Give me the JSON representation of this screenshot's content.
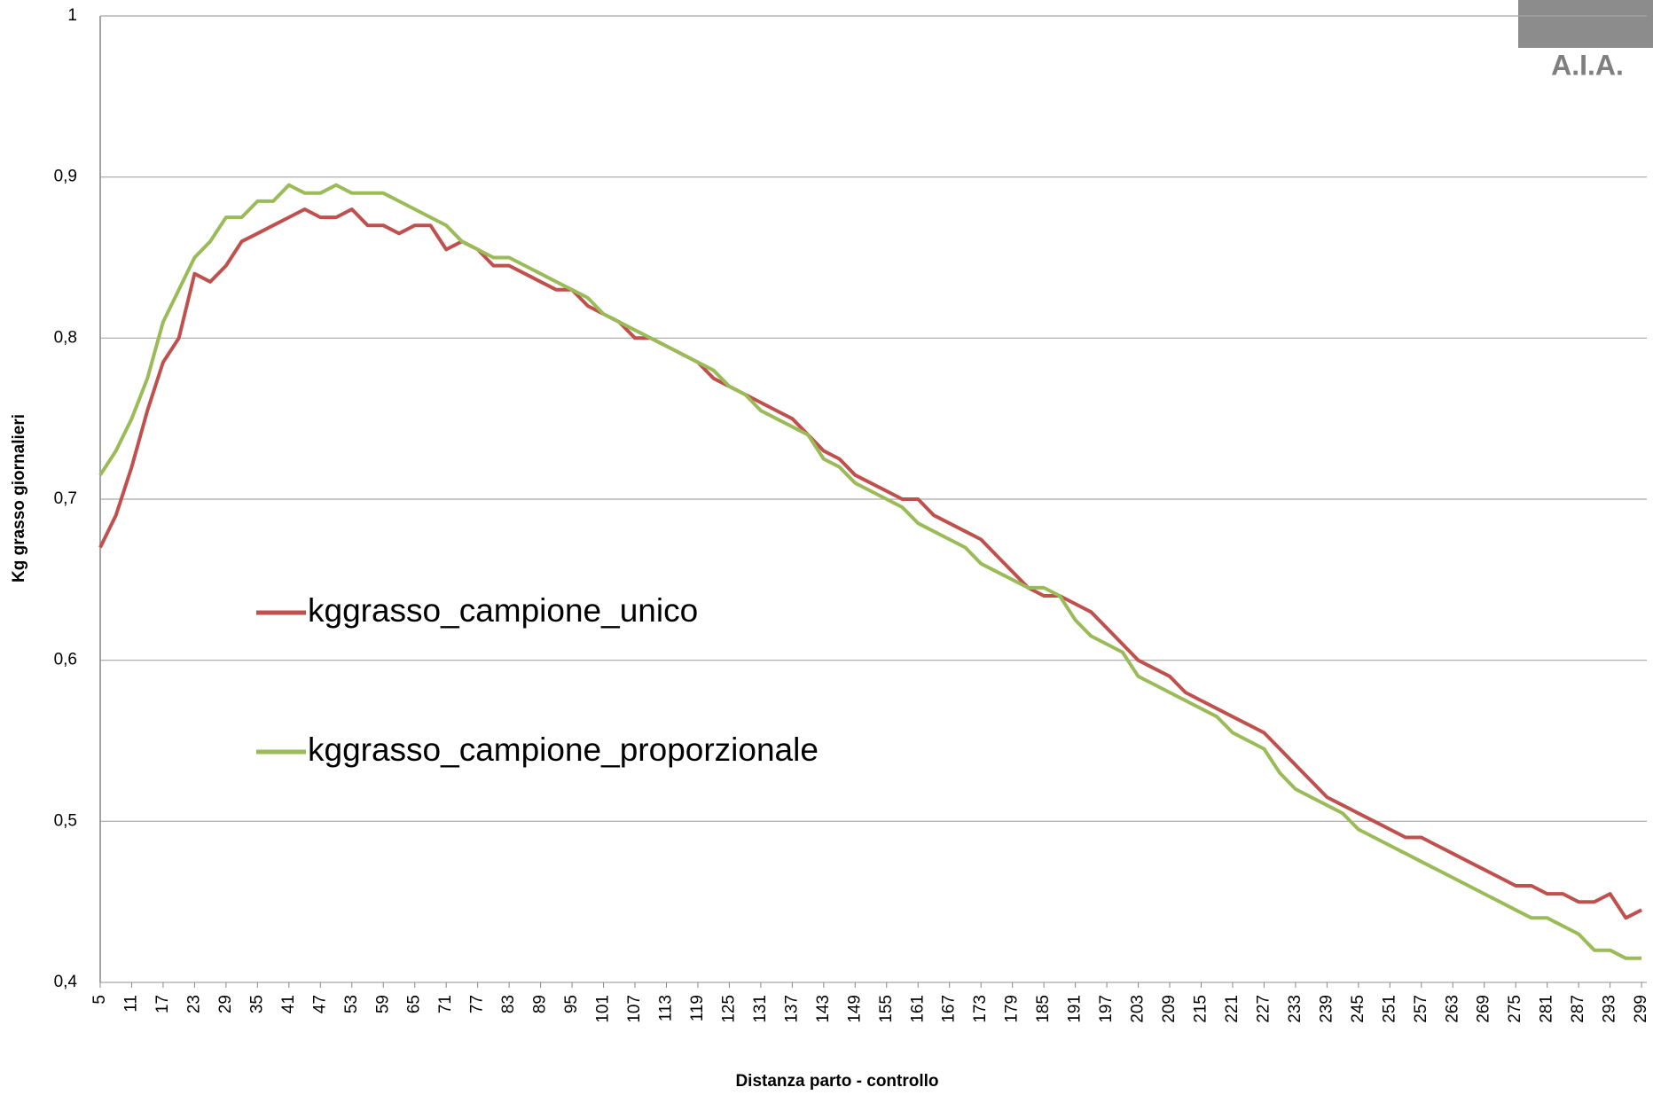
{
  "chart_data": {
    "type": "line",
    "xlabel": "Distanza parto - controllo",
    "ylabel": "Kg grasso giornalieri",
    "logo": "A.I.A.",
    "x": [
      5,
      8,
      11,
      14,
      17,
      20,
      23,
      26,
      29,
      32,
      35,
      38,
      41,
      44,
      47,
      50,
      53,
      56,
      59,
      62,
      65,
      68,
      71,
      74,
      77,
      80,
      83,
      86,
      89,
      92,
      95,
      98,
      101,
      104,
      107,
      110,
      113,
      116,
      119,
      122,
      125,
      128,
      131,
      134,
      137,
      140,
      143,
      146,
      149,
      152,
      155,
      158,
      161,
      164,
      167,
      170,
      173,
      176,
      179,
      182,
      185,
      188,
      191,
      194,
      197,
      200,
      203,
      206,
      209,
      212,
      215,
      218,
      221,
      224,
      227,
      230,
      233,
      236,
      239,
      242,
      245,
      248,
      251,
      254,
      257,
      260,
      263,
      266,
      269,
      272,
      275,
      278,
      281,
      284,
      287,
      290,
      293,
      296,
      299
    ],
    "series": [
      {
        "name": "kggrasso_campione_unico",
        "color": "#c0504d",
        "values": [
          0.67,
          0.69,
          0.72,
          0.755,
          0.785,
          0.8,
          0.84,
          0.835,
          0.845,
          0.86,
          0.865,
          0.87,
          0.875,
          0.88,
          0.875,
          0.875,
          0.88,
          0.87,
          0.87,
          0.865,
          0.87,
          0.87,
          0.855,
          0.86,
          0.855,
          0.845,
          0.845,
          0.84,
          0.835,
          0.83,
          0.83,
          0.82,
          0.815,
          0.81,
          0.8,
          0.8,
          0.795,
          0.79,
          0.785,
          0.775,
          0.77,
          0.765,
          0.76,
          0.755,
          0.75,
          0.74,
          0.73,
          0.725,
          0.715,
          0.71,
          0.705,
          0.7,
          0.7,
          0.69,
          0.685,
          0.68,
          0.675,
          0.665,
          0.655,
          0.645,
          0.64,
          0.64,
          0.635,
          0.63,
          0.62,
          0.61,
          0.6,
          0.595,
          0.59,
          0.58,
          0.575,
          0.57,
          0.565,
          0.56,
          0.555,
          0.545,
          0.535,
          0.525,
          0.515,
          0.51,
          0.505,
          0.5,
          0.495,
          0.49,
          0.49,
          0.485,
          0.48,
          0.475,
          0.47,
          0.465,
          0.46,
          0.46,
          0.455,
          0.455,
          0.45,
          0.45,
          0.455,
          0.44,
          0.445
        ]
      },
      {
        "name": "kggrasso_campione_proporzionale",
        "color": "#9bbb59",
        "values": [
          0.715,
          0.73,
          0.75,
          0.775,
          0.81,
          0.83,
          0.85,
          0.86,
          0.875,
          0.875,
          0.885,
          0.885,
          0.895,
          0.89,
          0.89,
          0.895,
          0.89,
          0.89,
          0.89,
          0.885,
          0.88,
          0.875,
          0.87,
          0.86,
          0.855,
          0.85,
          0.85,
          0.845,
          0.84,
          0.835,
          0.83,
          0.825,
          0.815,
          0.81,
          0.805,
          0.8,
          0.795,
          0.79,
          0.785,
          0.78,
          0.77,
          0.765,
          0.755,
          0.75,
          0.745,
          0.74,
          0.725,
          0.72,
          0.71,
          0.705,
          0.7,
          0.695,
          0.685,
          0.68,
          0.675,
          0.67,
          0.66,
          0.655,
          0.65,
          0.645,
          0.645,
          0.64,
          0.625,
          0.615,
          0.61,
          0.605,
          0.59,
          0.585,
          0.58,
          0.575,
          0.57,
          0.565,
          0.555,
          0.55,
          0.545,
          0.53,
          0.52,
          0.515,
          0.51,
          0.505,
          0.495,
          0.49,
          0.485,
          0.48,
          0.475,
          0.47,
          0.465,
          0.46,
          0.455,
          0.45,
          0.445,
          0.44,
          0.44,
          0.435,
          0.43,
          0.42,
          0.42,
          0.415,
          0.415
        ]
      }
    ],
    "xlim": [
      5,
      300
    ],
    "xticks": [
      5,
      11,
      17,
      23,
      29,
      35,
      41,
      47,
      53,
      59,
      65,
      71,
      77,
      83,
      89,
      95,
      101,
      107,
      113,
      119,
      125,
      131,
      137,
      143,
      149,
      155,
      161,
      167,
      173,
      179,
      185,
      191,
      197,
      203,
      209,
      215,
      221,
      227,
      233,
      239,
      245,
      251,
      257,
      263,
      269,
      275,
      281,
      287,
      293,
      299
    ],
    "ylim": [
      0.4,
      1
    ],
    "yticks": [
      {
        "value": 0.4,
        "label": "0,4"
      },
      {
        "value": 0.5,
        "label": "0,5"
      },
      {
        "value": 0.6,
        "label": "0,6"
      },
      {
        "value": 0.7,
        "label": "0,7"
      },
      {
        "value": 0.8,
        "label": "0,8"
      },
      {
        "value": 0.9,
        "label": "0,9"
      },
      1
    ],
    "grid": true
  }
}
